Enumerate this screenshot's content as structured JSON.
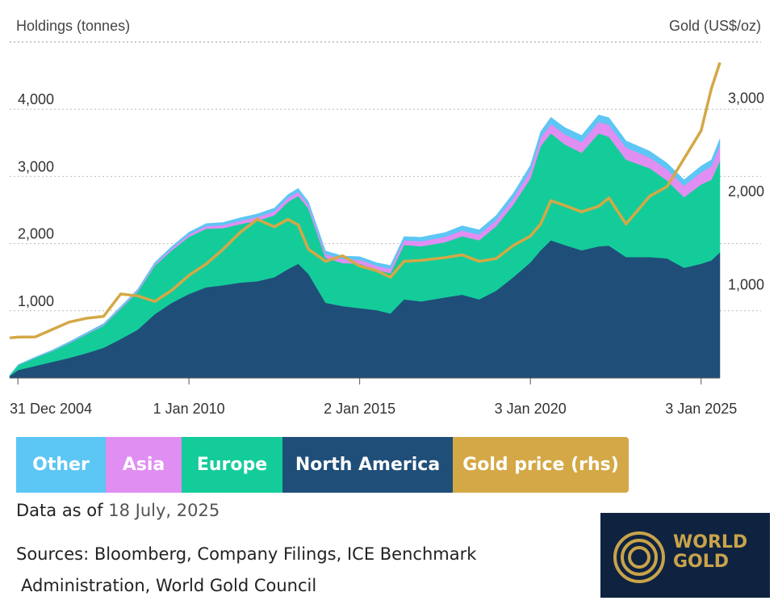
{
  "chart_data": {
    "type": "area",
    "stacked": true,
    "secondary_axis_series": "Gold price (rhs)",
    "left_axis": {
      "label": "Holdings (tonnes)",
      "ticks": [
        1000,
        2000,
        3000,
        4000
      ],
      "tick_labels": [
        "1,000",
        "2,000",
        "3,000",
        "4,000"
      ],
      "range": [
        0,
        5000
      ]
    },
    "right_axis": {
      "label": "Gold (US$/oz)",
      "ticks": [
        1000,
        2000,
        3000
      ],
      "tick_labels": [
        "1,000",
        "2,000",
        "3,000"
      ],
      "range": [
        0,
        3600
      ]
    },
    "x_axis": {
      "range": [
        2004.75,
        2025.55
      ],
      "ticks": [
        2004.99,
        2010.0,
        2015.0,
        2020.0,
        2025.0
      ],
      "tick_labels": [
        "31 Dec 2004",
        "1 Jan 2010",
        "2 Jan 2015",
        "3 Jan 2020",
        "3 Jan 2025"
      ]
    },
    "grid": "horizontal dotted",
    "x": [
      2004.75,
      2005.0,
      2005.5,
      2006.0,
      2006.5,
      2007.0,
      2007.5,
      2008.0,
      2008.5,
      2009.0,
      2009.5,
      2010.0,
      2010.5,
      2011.0,
      2011.5,
      2012.0,
      2012.5,
      2012.9,
      2013.2,
      2013.5,
      2014.0,
      2014.5,
      2015.0,
      2015.5,
      2015.9,
      2016.3,
      2016.8,
      2017.5,
      2018.0,
      2018.5,
      2019.0,
      2019.5,
      2020.0,
      2020.3,
      2020.6,
      2021.0,
      2021.5,
      2022.0,
      2022.3,
      2022.8,
      2023.5,
      2024.0,
      2024.5,
      2025.0,
      2025.3,
      2025.55
    ],
    "series": [
      {
        "name": "North America",
        "color": "#1f4e79",
        "values": [
          30,
          120,
          180,
          240,
          300,
          370,
          450,
          580,
          720,
          950,
          1120,
          1250,
          1350,
          1380,
          1420,
          1440,
          1500,
          1620,
          1700,
          1550,
          1120,
          1070,
          1040,
          1010,
          960,
          1170,
          1140,
          1200,
          1240,
          1170,
          1300,
          1500,
          1720,
          1900,
          2050,
          1980,
          1900,
          1960,
          1970,
          1800,
          1800,
          1780,
          1640,
          1700,
          1750,
          1870
        ]
      },
      {
        "name": "Europe",
        "color": "#14cc9a",
        "values": [
          10,
          70,
          120,
          160,
          220,
          280,
          330,
          450,
          560,
          720,
          780,
          850,
          870,
          850,
          870,
          900,
          920,
          1000,
          1010,
          970,
          670,
          640,
          660,
          600,
          600,
          810,
          820,
          820,
          870,
          880,
          960,
          1080,
          1250,
          1550,
          1590,
          1500,
          1450,
          1680,
          1620,
          1450,
          1320,
          1160,
          1050,
          1180,
          1200,
          1360
        ]
      },
      {
        "name": "Asia",
        "color": "#e08ef2",
        "values": [
          0,
          2,
          3,
          5,
          8,
          10,
          12,
          15,
          20,
          25,
          30,
          35,
          40,
          45,
          50,
          55,
          60,
          60,
          60,
          55,
          55,
          60,
          60,
          60,
          65,
          70,
          75,
          80,
          85,
          85,
          90,
          95,
          115,
          125,
          140,
          150,
          160,
          170,
          180,
          180,
          160,
          165,
          170,
          180,
          200,
          230
        ]
      },
      {
        "name": "Other",
        "color": "#5cc6f4",
        "values": [
          0,
          8,
          10,
          12,
          14,
          16,
          18,
          20,
          22,
          26,
          30,
          34,
          38,
          40,
          44,
          46,
          48,
          50,
          52,
          50,
          46,
          46,
          46,
          46,
          50,
          55,
          60,
          65,
          70,
          70,
          70,
          75,
          80,
          90,
          100,
          100,
          100,
          105,
          105,
          100,
          95,
          95,
          90,
          95,
          95,
          100
        ]
      },
      {
        "name": "Gold price (rhs)",
        "color": "#d4a846",
        "axis": "right",
        "values": [
          430,
          438,
          440,
          520,
          600,
          640,
          660,
          900,
          880,
          820,
          940,
          1100,
          1220,
          1380,
          1560,
          1700,
          1620,
          1700,
          1640,
          1380,
          1250,
          1310,
          1200,
          1150,
          1080,
          1250,
          1260,
          1290,
          1320,
          1250,
          1280,
          1420,
          1520,
          1650,
          1900,
          1850,
          1780,
          1840,
          1930,
          1650,
          1950,
          2050,
          2350,
          2650,
          3100,
          3380
        ]
      }
    ]
  },
  "legend": [
    {
      "label": "Other",
      "color": "#5cc6f4"
    },
    {
      "label": "Asia",
      "color": "#e08ef2"
    },
    {
      "label": "Europe",
      "color": "#14cc9a"
    },
    {
      "label": "North America",
      "color": "#1f4e79"
    },
    {
      "label": "Gold price (rhs)",
      "color": "#d4a846"
    }
  ],
  "meta": {
    "data_as_of_label": "Data as of",
    "data_as_of_date": "18 July, 2025",
    "sources_line1": "Sources: Bloomberg, Company Filings, ICE Benchmark",
    "sources_line2": "Administration, World Gold  Council"
  },
  "logo": {
    "line1": "WORLD",
    "line2": "GOLD"
  }
}
